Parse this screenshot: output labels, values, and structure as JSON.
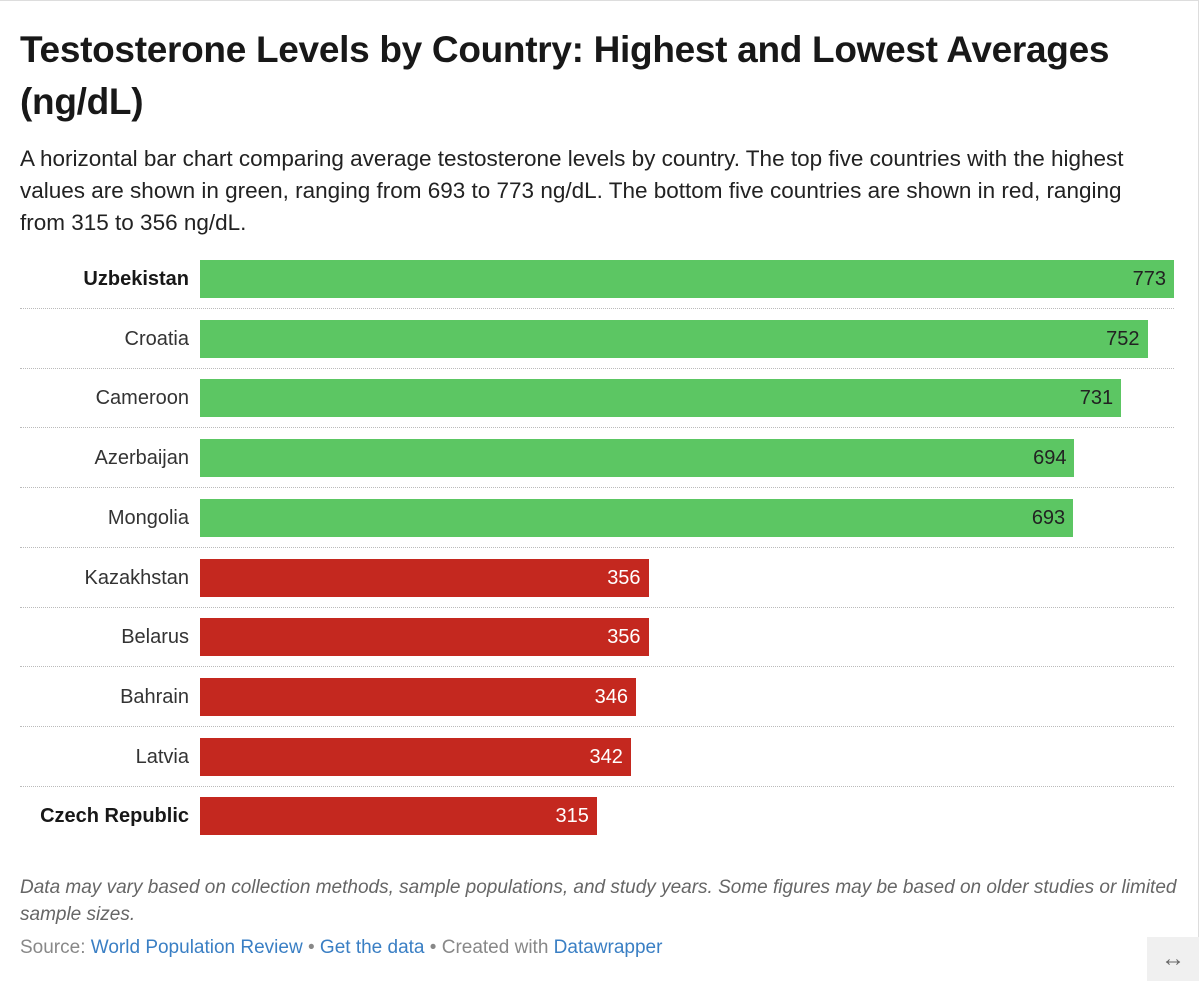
{
  "title": "Testosterone Levels by Country: Highest and Lowest Averages (ng/dL)",
  "subtitle": "A horizontal bar chart comparing average testosterone levels by country. The top five countries with the highest values are shown in green, ranging from 693 to 773 ng/dL. The bottom five countries are shown in red, ranging from 315 to 356 ng/dL.",
  "chart_data": {
    "type": "bar",
    "orientation": "horizontal",
    "categories": [
      "Uzbekistan",
      "Croatia",
      "Cameroon",
      "Azerbaijan",
      "Mongolia",
      "Kazakhstan",
      "Belarus",
      "Bahrain",
      "Latvia",
      "Czech Republic"
    ],
    "values": [
      773,
      752,
      731,
      694,
      693,
      356,
      356,
      346,
      342,
      315
    ],
    "bold_categories": [
      "Uzbekistan",
      "Czech Republic"
    ],
    "groups": [
      "top",
      "top",
      "top",
      "top",
      "top",
      "bottom",
      "bottom",
      "bottom",
      "bottom",
      "bottom"
    ],
    "colors": {
      "top": "#5cc663",
      "bottom": "#c4281f"
    },
    "value_label_colors": {
      "top": "#222222",
      "bottom": "#ffffff"
    },
    "xlim": [
      0,
      773
    ],
    "grid": false,
    "data_labels": true
  },
  "notes": "Data may vary based on collection methods, sample populations, and study years. Some figures may be based on older studies or limited sample sizes.",
  "footer": {
    "source_label": "Source:",
    "source_link": "World Population Review",
    "separator": "•",
    "get_data": "Get the data",
    "created_with": "Created with",
    "datawrapper": "Datawrapper"
  },
  "resize_icon": "↔"
}
